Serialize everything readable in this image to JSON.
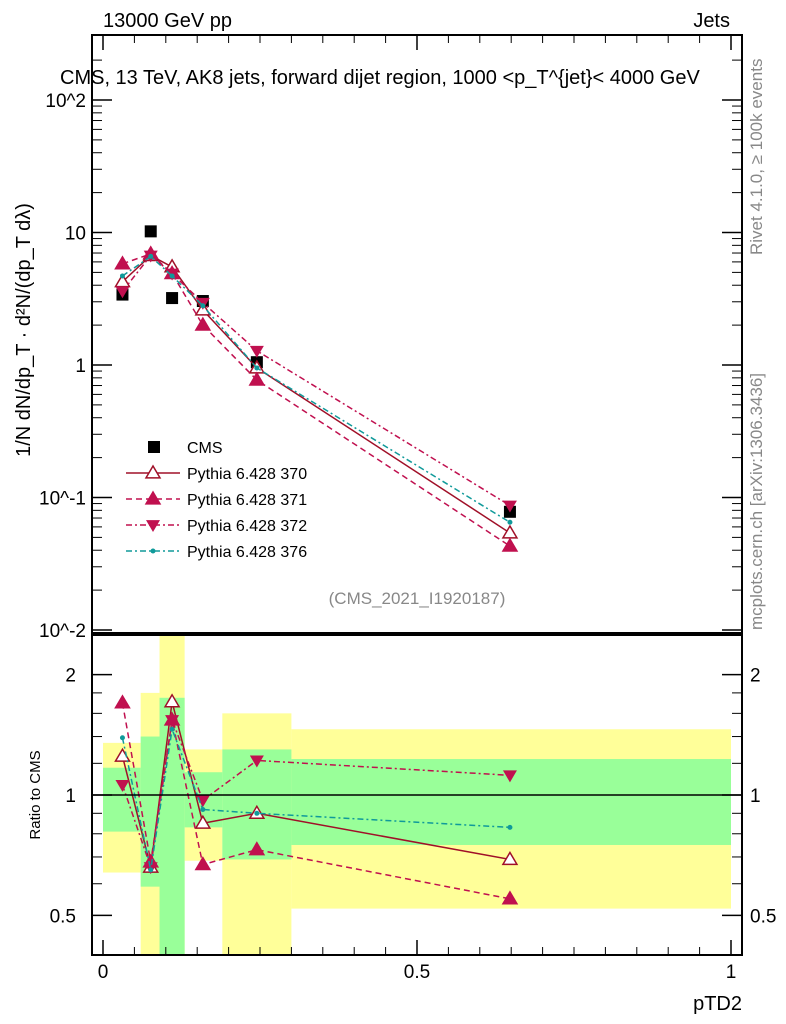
{
  "header": {
    "left": "13000 GeV pp",
    "right": "Jets"
  },
  "side": {
    "rivet": "Rivet 4.1.0, ≥ 100k events",
    "mcplots": "mcplots.cern.ch [arXiv:1306.3436]"
  },
  "colors": {
    "cms": "#000000",
    "p370": "#a01028",
    "p371": "#c0104f",
    "p372": "#c0104f",
    "p376": "#109a9a",
    "green": "#99ff99",
    "yellow": "#ffff99"
  },
  "chart_data": [
    {
      "type": "scatter",
      "title": "CMS, 13 TeV, AK8 jets, forward dijet region, 1000 <p_T^{jet}< 4000 GeV",
      "ylabel": "1/N dN/dp_T · d²N/(dp_T dλ)",
      "yscale": "log",
      "ylim": [
        0.01,
        300
      ],
      "xlim": [
        0,
        1
      ],
      "ytick_labels": [
        "10^-2",
        "10^-1",
        "1",
        "10",
        "10^2"
      ],
      "watermark": "(CMS_2021_I1920187)",
      "legend_position": "bottom-left",
      "x": [
        0.031,
        0.076,
        0.11,
        0.159,
        0.245,
        0.648
      ],
      "series": [
        {
          "name": "CMS",
          "values": [
            3.4,
            10.2,
            3.2,
            3.04,
            1.05,
            0.078
          ]
        },
        {
          "name": "Pythia 6.428 370",
          "values": [
            4.25,
            6.7,
            5.5,
            2.6,
            0.95,
            0.054
          ]
        },
        {
          "name": "Pythia 6.428 371",
          "values": [
            5.8,
            6.9,
            4.9,
            2.0,
            0.77,
            0.043
          ]
        },
        {
          "name": "Pythia 6.428 372",
          "values": [
            3.6,
            6.7,
            4.9,
            2.95,
            1.28,
            0.087
          ]
        },
        {
          "name": "Pythia 6.428 376",
          "values": [
            4.7,
            6.6,
            4.7,
            2.8,
            0.95,
            0.065
          ]
        }
      ]
    },
    {
      "type": "line",
      "ylabel": "Ratio to CMS",
      "xlabel": "pTD2",
      "yscale": "log",
      "ylim": [
        0.4,
        2.5
      ],
      "xlim": [
        0,
        1
      ],
      "ytick_labels": [
        "0.5",
        "1",
        "2"
      ],
      "xtick_labels": [
        "0",
        "0.5",
        "1"
      ],
      "bin_edges": [
        0,
        0.06,
        0.09,
        0.13,
        0.19,
        0.3,
        1.0
      ],
      "band_1sigma": [
        [
          0.81,
          1.17
        ],
        [
          0.59,
          1.4
        ],
        [
          0.3,
          1.75
        ],
        [
          0.83,
          1.14
        ],
        [
          0.69,
          1.3
        ],
        [
          0.75,
          1.23
        ]
      ],
      "band_2sigma": [
        [
          0.64,
          1.35
        ],
        [
          0.3,
          1.8
        ],
        [
          0.3,
          3.0
        ],
        [
          0.685,
          1.3
        ],
        [
          0.3,
          1.6
        ],
        [
          0.52,
          1.46
        ]
      ],
      "x": [
        0.031,
        0.076,
        0.11,
        0.159,
        0.245,
        0.648
      ],
      "series": [
        {
          "name": "Pythia 6.428 370",
          "values": [
            1.25,
            0.66,
            1.71,
            0.85,
            0.9,
            0.69
          ]
        },
        {
          "name": "Pythia 6.428 371",
          "values": [
            1.7,
            0.68,
            1.54,
            0.67,
            0.73,
            0.55
          ]
        },
        {
          "name": "Pythia 6.428 372",
          "values": [
            1.06,
            0.66,
            1.54,
            0.97,
            1.22,
            1.12
          ]
        },
        {
          "name": "Pythia 6.428 376",
          "values": [
            1.39,
            0.65,
            1.46,
            0.92,
            0.9,
            0.83
          ]
        }
      ]
    }
  ]
}
